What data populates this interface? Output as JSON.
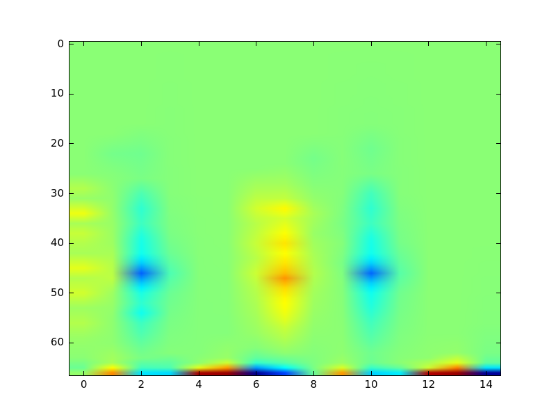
{
  "figure": {
    "background_color": "#ffffff",
    "plot_border_color": "#000000",
    "tick_label_color": "#000000"
  },
  "chart_data": {
    "type": "heatmap",
    "title": "",
    "xlabel": "",
    "ylabel": "",
    "colormap": "jet",
    "grid": false,
    "legend": "none",
    "x_range": [
      -0.5,
      14.5
    ],
    "y_range": [
      66.5,
      -0.5
    ],
    "y_axis_inverted": true,
    "x_ticks": [
      0,
      2,
      4,
      6,
      8,
      10,
      12,
      14
    ],
    "y_ticks": [
      0,
      10,
      20,
      30,
      40,
      50,
      60
    ],
    "n_cols": 15,
    "n_rows": 67,
    "value_range": [
      -1,
      1
    ],
    "background_value": 0.02,
    "zero_color": "#8afb6b",
    "neg_blob_core_color": "#1778f2",
    "pos_blob_core_color": "#ffa500",
    "column_profiles": [
      [
        [
          0,
          0.02
        ],
        [
          26,
          0.02
        ],
        [
          29,
          0.1
        ],
        [
          31,
          0.05
        ],
        [
          34,
          0.22
        ],
        [
          36,
          0.08
        ],
        [
          38,
          0.14
        ],
        [
          40,
          0.1
        ],
        [
          42,
          0.08
        ],
        [
          45,
          0.2
        ],
        [
          47,
          0.1
        ],
        [
          50,
          0.16
        ],
        [
          53,
          0.06
        ],
        [
          56,
          0.1
        ],
        [
          59,
          0.05
        ],
        [
          63,
          0.02
        ],
        [
          65,
          -0.04
        ],
        [
          66,
          0.04
        ]
      ],
      [
        [
          0,
          0.02
        ],
        [
          18,
          0.02
        ],
        [
          22,
          -0.02
        ],
        [
          26,
          0.01
        ],
        [
          30,
          0.03
        ],
        [
          40,
          0.06
        ],
        [
          44,
          0.1
        ],
        [
          47,
          0.12
        ],
        [
          50,
          0.06
        ],
        [
          55,
          0.03
        ],
        [
          60,
          0.03
        ],
        [
          64,
          0.08
        ],
        [
          65,
          0.25
        ],
        [
          66,
          0.48
        ]
      ],
      [
        [
          0,
          0.02
        ],
        [
          16,
          0.02
        ],
        [
          22,
          -0.03
        ],
        [
          27,
          -0.01
        ],
        [
          30,
          -0.1
        ],
        [
          33,
          -0.16
        ],
        [
          36,
          -0.13
        ],
        [
          39,
          -0.2
        ],
        [
          42,
          -0.22
        ],
        [
          44,
          -0.35
        ],
        [
          46,
          -0.56
        ],
        [
          48,
          -0.35
        ],
        [
          50,
          -0.2
        ],
        [
          52,
          -0.16
        ],
        [
          54,
          -0.22
        ],
        [
          56,
          -0.13
        ],
        [
          58,
          -0.1
        ],
        [
          61,
          -0.04
        ],
        [
          63,
          -0.01
        ],
        [
          65,
          -0.12
        ],
        [
          66,
          -0.3
        ]
      ],
      [
        [
          0,
          0.02
        ],
        [
          30,
          0.01
        ],
        [
          38,
          -0.01
        ],
        [
          42,
          -0.04
        ],
        [
          46,
          -0.1
        ],
        [
          50,
          -0.04
        ],
        [
          56,
          -0.01
        ],
        [
          62,
          0.01
        ],
        [
          65,
          -0.1
        ],
        [
          66,
          -0.32
        ]
      ],
      [
        [
          0,
          0.02
        ],
        [
          30,
          0.02
        ],
        [
          50,
          0.01
        ],
        [
          62,
          0.01
        ],
        [
          64,
          0.03
        ],
        [
          65,
          0.2
        ],
        [
          66,
          0.92
        ]
      ],
      [
        [
          0,
          0.02
        ],
        [
          40,
          0.02
        ],
        [
          58,
          0.01
        ],
        [
          63,
          0.05
        ],
        [
          64,
          0.15
        ],
        [
          65,
          0.45
        ],
        [
          66,
          0.95
        ]
      ],
      [
        [
          0,
          0.02
        ],
        [
          25,
          0.02
        ],
        [
          30,
          0.1
        ],
        [
          33,
          0.16
        ],
        [
          36,
          0.11
        ],
        [
          40,
          0.14
        ],
        [
          43,
          0.11
        ],
        [
          46,
          0.15
        ],
        [
          49,
          0.11
        ],
        [
          52,
          0.09
        ],
        [
          55,
          0.07
        ],
        [
          58,
          0.05
        ],
        [
          61,
          0.01
        ],
        [
          63,
          -0.06
        ],
        [
          64,
          -0.15
        ],
        [
          65,
          -0.45
        ],
        [
          66,
          -0.96
        ]
      ],
      [
        [
          0,
          0.02
        ],
        [
          24,
          0.02
        ],
        [
          28,
          0.07
        ],
        [
          31,
          0.13
        ],
        [
          33,
          0.26
        ],
        [
          35,
          0.17
        ],
        [
          37,
          0.22
        ],
        [
          40,
          0.3
        ],
        [
          42,
          0.25
        ],
        [
          44,
          0.3
        ],
        [
          46,
          0.38
        ],
        [
          47,
          0.46
        ],
        [
          49,
          0.32
        ],
        [
          51,
          0.26
        ],
        [
          53,
          0.24
        ],
        [
          55,
          0.2
        ],
        [
          57,
          0.14
        ],
        [
          59,
          0.1
        ],
        [
          62,
          0.03
        ],
        [
          64,
          -0.08
        ],
        [
          65,
          -0.25
        ],
        [
          66,
          -0.62
        ]
      ],
      [
        [
          0,
          0.02
        ],
        [
          18,
          0.02
        ],
        [
          23,
          -0.02
        ],
        [
          28,
          0.01
        ],
        [
          31,
          0.04
        ],
        [
          34,
          0.08
        ],
        [
          38,
          0.05
        ],
        [
          42,
          0.08
        ],
        [
          46,
          0.1
        ],
        [
          50,
          0.07
        ],
        [
          54,
          0.05
        ],
        [
          58,
          0.03
        ],
        [
          62,
          0.01
        ],
        [
          65,
          -0.01
        ],
        [
          66,
          -0.05
        ]
      ],
      [
        [
          0,
          0.02
        ],
        [
          30,
          0.01
        ],
        [
          36,
          -0.01
        ],
        [
          40,
          0.01
        ],
        [
          44,
          -0.01
        ],
        [
          48,
          0.01
        ],
        [
          56,
          0.02
        ],
        [
          62,
          0.03
        ],
        [
          64,
          0.06
        ],
        [
          65,
          0.18
        ],
        [
          66,
          0.45
        ]
      ],
      [
        [
          0,
          0.02
        ],
        [
          16,
          0.01
        ],
        [
          21,
          -0.03
        ],
        [
          26,
          -0.01
        ],
        [
          30,
          -0.12
        ],
        [
          33,
          -0.16
        ],
        [
          36,
          -0.13
        ],
        [
          39,
          -0.2
        ],
        [
          42,
          -0.22
        ],
        [
          44,
          -0.34
        ],
        [
          46,
          -0.55
        ],
        [
          48,
          -0.34
        ],
        [
          50,
          -0.22
        ],
        [
          53,
          -0.18
        ],
        [
          56,
          -0.12
        ],
        [
          59,
          -0.08
        ],
        [
          62,
          -0.03
        ],
        [
          64,
          -0.04
        ],
        [
          65,
          -0.14
        ],
        [
          66,
          -0.34
        ]
      ],
      [
        [
          0,
          0.02
        ],
        [
          30,
          0.01
        ],
        [
          40,
          -0.02
        ],
        [
          46,
          -0.08
        ],
        [
          50,
          -0.03
        ],
        [
          56,
          -0.01
        ],
        [
          62,
          0.01
        ],
        [
          64,
          0.02
        ],
        [
          65,
          -0.05
        ],
        [
          66,
          -0.28
        ]
      ],
      [
        [
          0,
          0.02
        ],
        [
          40,
          0.02
        ],
        [
          58,
          0.02
        ],
        [
          63,
          0.03
        ],
        [
          65,
          0.15
        ],
        [
          66,
          0.9
        ]
      ],
      [
        [
          0,
          0.02
        ],
        [
          40,
          0.02
        ],
        [
          58,
          0.02
        ],
        [
          62,
          0.04
        ],
        [
          64,
          0.2
        ],
        [
          65,
          0.5
        ],
        [
          66,
          0.95
        ]
      ],
      [
        [
          0,
          0.02
        ],
        [
          40,
          0.02
        ],
        [
          56,
          0.01
        ],
        [
          62,
          -0.01
        ],
        [
          64,
          -0.06
        ],
        [
          65,
          -0.3
        ],
        [
          66,
          -0.95
        ]
      ]
    ]
  }
}
